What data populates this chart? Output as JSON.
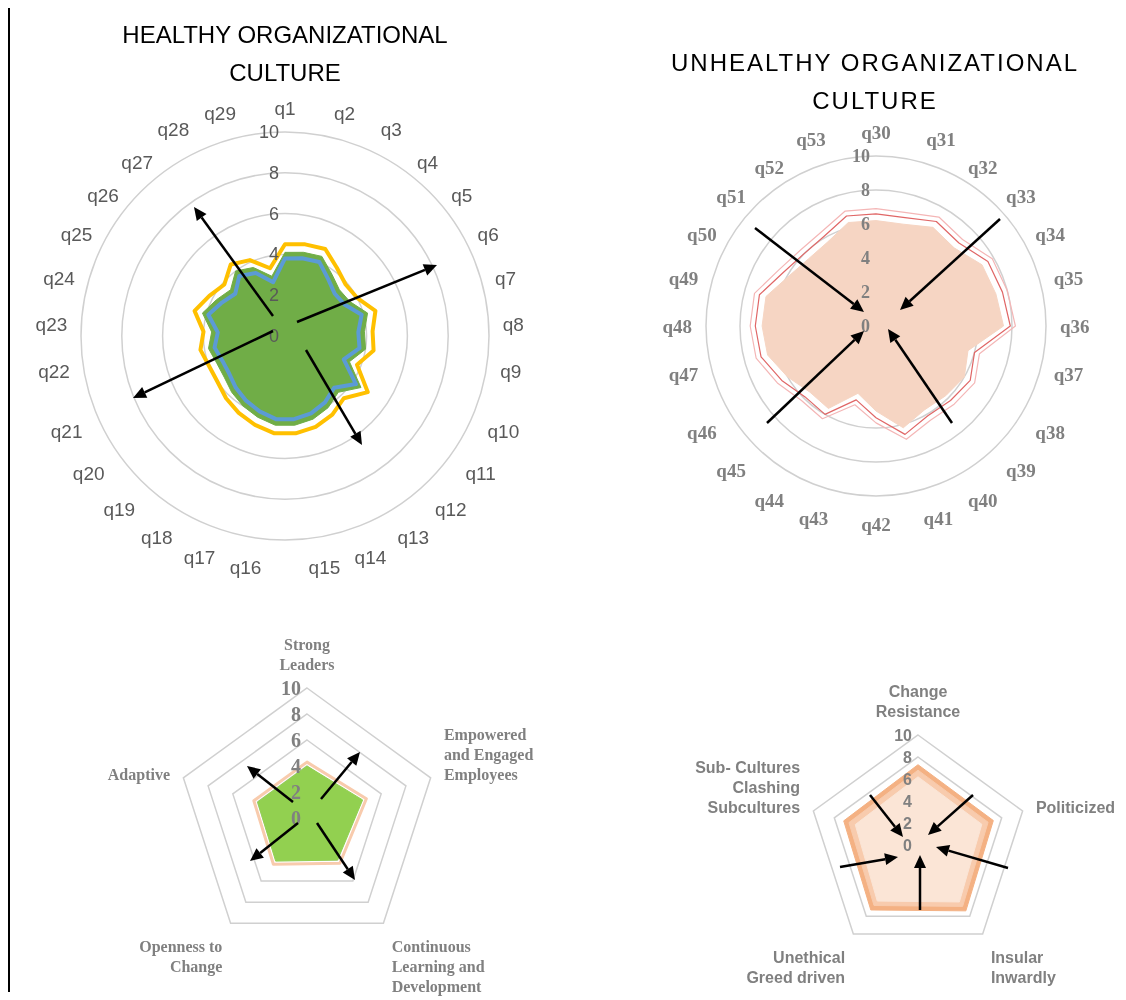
{
  "chart_data": [
    {
      "type": "radar",
      "title": "HEALTHY ORGANIZATIONAL CULTURE",
      "categories": [
        "q1",
        "q2",
        "q3",
        "q4",
        "q5",
        "q6",
        "q7",
        "q8",
        "q9",
        "q10",
        "q11",
        "q12",
        "q13",
        "q14",
        "q15",
        "q16",
        "q17",
        "q18",
        "q19",
        "q20",
        "q21",
        "q22",
        "q23",
        "q24",
        "q25",
        "q26",
        "q27",
        "q28",
        "q29"
      ],
      "ylim": [
        0,
        10
      ],
      "yticks": [
        0,
        2,
        4,
        6,
        8,
        10
      ],
      "grid": true,
      "series": [
        {
          "color": "#ffc000",
          "values": [
            4.5,
            4.6,
            4.7,
            4.2,
            3.9,
            4.0,
            4.6,
            4.3,
            4.4,
            3.8,
            4.9,
            4.2,
            4.5,
            4.7,
            4.8,
            4.8,
            4.6,
            4.4,
            4.2,
            4.0,
            4.0,
            4.2,
            4.0,
            4.6,
            4.2,
            3.9,
            4.4,
            4.1,
            3.4
          ]
        },
        {
          "type": "area",
          "color": "#70ad47",
          "values": [
            4.1,
            4.2,
            4.3,
            3.8,
            3.5,
            3.6,
            4.2,
            3.9,
            4.0,
            3.4,
            4.5,
            3.8,
            4.1,
            4.3,
            4.4,
            4.4,
            4.2,
            4.0,
            3.8,
            3.6,
            3.6,
            3.8,
            3.6,
            4.2,
            3.8,
            3.5,
            4.0,
            3.7,
            3.0
          ]
        },
        {
          "color": "#5b9bd5",
          "values": [
            3.8,
            3.9,
            4.0,
            3.5,
            3.2,
            3.3,
            3.9,
            3.6,
            3.7,
            3.1,
            4.2,
            3.5,
            3.8,
            4.0,
            4.1,
            4.1,
            3.9,
            3.7,
            3.5,
            3.3,
            3.3,
            3.5,
            3.3,
            3.9,
            3.5,
            3.2,
            3.7,
            3.4,
            2.7
          ]
        }
      ]
    },
    {
      "type": "radar",
      "title": "UNHEALTHY ORGANIZATIONAL CULTURE",
      "categories": [
        "q30",
        "q31",
        "q32",
        "q33",
        "q34",
        "q35",
        "q36",
        "q37",
        "q38",
        "q39",
        "q40",
        "q41",
        "q42",
        "q43",
        "q44",
        "q45",
        "q46",
        "q47",
        "q48",
        "q49",
        "q50",
        "q51",
        "q52",
        "q53"
      ],
      "ylim": [
        0,
        10
      ],
      "yticks": [
        0,
        2,
        4,
        6,
        8,
        10
      ],
      "grid": true,
      "series": [
        {
          "color": "#f4b6b6",
          "values": [
            6.9,
            6.9,
            7.4,
            7.2,
            7.9,
            8.0,
            8.2,
            6.3,
            6.7,
            6.5,
            6.4,
            6.9,
            5.7,
            4.8,
            6.3,
            6.2,
            6.7,
            7.3,
            7.4,
            7.4,
            6.6,
            6.3,
            6.4,
            7.0
          ]
        },
        {
          "type": "area",
          "color": "#f6d5c3",
          "values": [
            6.2,
            6.2,
            6.7,
            6.5,
            7.2,
            7.3,
            7.5,
            5.6,
            6.0,
            5.8,
            5.7,
            6.2,
            5.0,
            4.1,
            5.6,
            5.5,
            6.0,
            6.6,
            6.7,
            6.7,
            5.9,
            5.6,
            5.7,
            6.3
          ]
        },
        {
          "color": "#e06666",
          "values": [
            6.6,
            6.6,
            7.1,
            6.9,
            7.6,
            7.7,
            7.9,
            6.0,
            6.4,
            6.2,
            6.1,
            6.6,
            5.4,
            4.5,
            6.0,
            5.9,
            6.4,
            7.0,
            7.1,
            7.1,
            6.3,
            6.0,
            6.1,
            6.7
          ]
        }
      ]
    },
    {
      "type": "radar",
      "categories": [
        "Strong Leaders",
        "Empowered and Engaged Employees",
        "Continuous Learning and Development",
        "Openness to Change",
        "Adaptive"
      ],
      "ylim": [
        0,
        10
      ],
      "yticks": [
        0,
        2,
        4,
        6,
        8,
        10
      ],
      "grid": true,
      "series": [
        {
          "color": "#f8cbad",
          "values": [
            4.3,
            4.8,
            4.3,
            4.4,
            4.3
          ]
        },
        {
          "type": "area",
          "color": "#92d050",
          "values": [
            4.0,
            4.5,
            4.0,
            4.1,
            4.0
          ]
        }
      ]
    },
    {
      "type": "radar",
      "categories": [
        "Change Resistance",
        "Politicized",
        "Insular Inwardly",
        "Unethical Greed driven",
        "Sub- Cultures Clashing Subcultures"
      ],
      "ylim": [
        0,
        10
      ],
      "yticks": [
        0,
        2,
        4,
        6,
        8,
        10
      ],
      "grid": true,
      "series": [
        {
          "type": "area",
          "color": "#f4b183",
          "values": [
            7.3,
            7.2,
            7.4,
            7.3,
            7.1
          ]
        },
        {
          "type": "area",
          "color": "#f8cbad",
          "values": [
            6.8,
            6.7,
            6.9,
            6.8,
            6.6
          ]
        },
        {
          "type": "area",
          "color": "#fbe5d6",
          "values": [
            6.2,
            6.1,
            6.4,
            6.3,
            6.0
          ]
        }
      ]
    }
  ]
}
